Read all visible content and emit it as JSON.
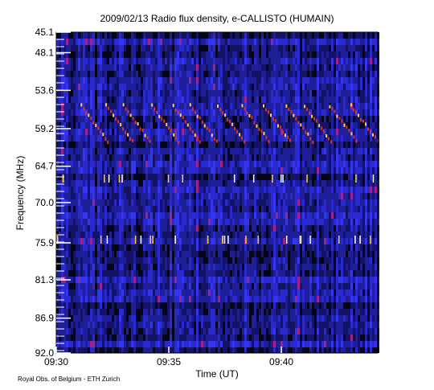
{
  "chart_data": {
    "type": "spectrogram",
    "title": "2009/02/13  Radio flux density, e-CALLISTO (HUMAIN)",
    "x_label": "Time (UT)",
    "y_label": "Frequency (MHz)",
    "footer": "Royal Obs. of Belgium - ETH Zurich",
    "xlim": [
      "09:30:00",
      "09:44:17"
    ],
    "xticks": [
      "09:30",
      "09:35",
      "09:40"
    ],
    "ylim": [
      92.0,
      45.1
    ],
    "yticks": [
      45.1,
      48.1,
      53.6,
      59.2,
      64.7,
      {
        "value": 70,
        "label": "70.0"
      },
      75.9,
      81.3,
      86.9,
      {
        "value": 92,
        "label": "92.0"
      }
    ]
  }
}
